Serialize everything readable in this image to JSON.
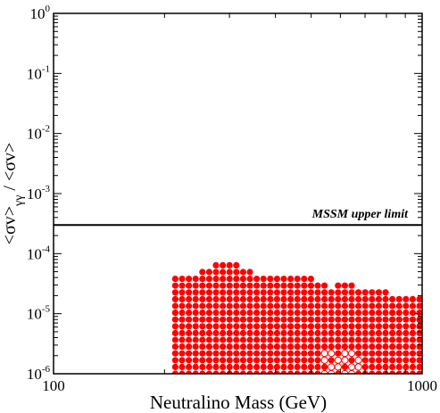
{
  "chart_data": {
    "type": "scatter",
    "xlabel": "Neutralino Mass (GeV)",
    "ylabel": "<σv>γγ / <σv>",
    "ylabel_parts": {
      "a": "<σv>",
      "sub": "γγ",
      "b": " / <σv>"
    },
    "xscale": "log",
    "yscale": "log",
    "xlim": [
      100,
      1000
    ],
    "ylim": [
      1e-06,
      1
    ],
    "x_tick_labels": [
      "100",
      "1000"
    ],
    "y_tick_labels": [
      {
        "base": "10",
        "exp": "0"
      },
      {
        "base": "10",
        "exp": "-1"
      },
      {
        "base": "10",
        "exp": "-2"
      },
      {
        "base": "10",
        "exp": "-3"
      },
      {
        "base": "10",
        "exp": "-4"
      },
      {
        "base": "10",
        "exp": "-5"
      },
      {
        "base": "10",
        "exp": "-6"
      }
    ],
    "grid": false,
    "legend": "none",
    "annotations": [
      {
        "text": "MSSM upper limit",
        "x": 560,
        "y": 0.00035
      }
    ],
    "reference_lines": [
      {
        "name": "MSSM upper limit",
        "y": 0.0003,
        "color": "#000000"
      }
    ],
    "series": [
      {
        "marker": "filled-circle",
        "color": "#ff0000",
        "region_envelope": [
          {
            "x": 205,
            "y_top": 4e-05
          },
          {
            "x": 215,
            "y_top": 4e-05
          },
          {
            "x": 250,
            "y_top": 5e-05
          },
          {
            "x": 275,
            "y_top": 7e-05
          },
          {
            "x": 305,
            "y_top": 7e-05
          },
          {
            "x": 335,
            "y_top": 5e-05
          },
          {
            "x": 380,
            "y_top": 4.5e-05
          },
          {
            "x": 440,
            "y_top": 4.5e-05
          },
          {
            "x": 500,
            "y_top": 4e-05
          },
          {
            "x": 560,
            "y_top": 2.8e-05
          },
          {
            "x": 620,
            "y_top": 3.3e-05
          },
          {
            "x": 680,
            "y_top": 2.5e-05
          },
          {
            "x": 760,
            "y_top": 2.5e-05
          },
          {
            "x": 850,
            "y_top": 2e-05
          },
          {
            "x": 950,
            "y_top": 1.8e-05
          },
          {
            "x": 1000,
            "y_top": 1.8e-05
          }
        ],
        "y_bottom": 1e-06
      },
      {
        "marker": "open-circle",
        "color": "#ff0000",
        "region": {
          "x": [
            530,
            680
          ],
          "y": [
            1e-06,
            2.2e-06
          ]
        }
      }
    ]
  }
}
